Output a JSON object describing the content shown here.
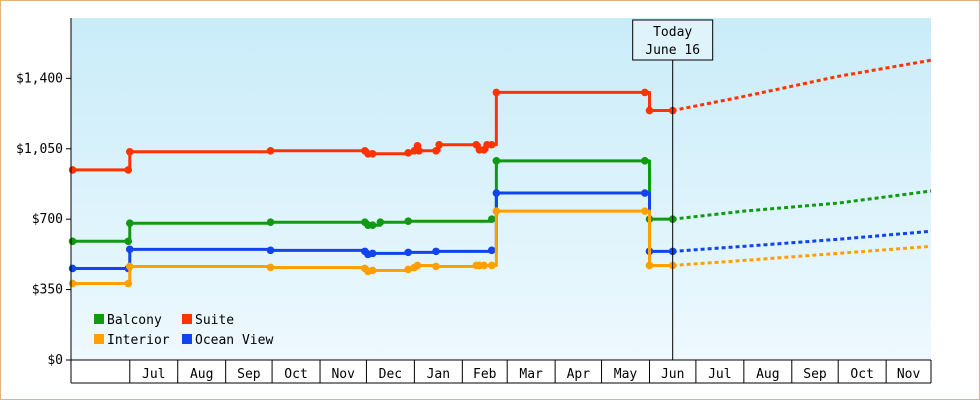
{
  "chart_data": {
    "type": "line",
    "title": "",
    "xlabel": "",
    "ylabel": "",
    "ylim": [
      0,
      1700
    ],
    "y_ticks": [
      0,
      350,
      700,
      1050,
      1400
    ],
    "y_tick_labels": [
      "$0",
      "$350",
      "$700",
      "$1,050",
      "$1,400"
    ],
    "x_domain": [
      "2023-05-24",
      "2024-11-30"
    ],
    "month_ticks": [
      {
        "date": "2023-07-01",
        "label": "Jul"
      },
      {
        "date": "2023-08-01",
        "label": "Aug"
      },
      {
        "date": "2023-09-01",
        "label": "Sep"
      },
      {
        "date": "2023-10-01",
        "label": "Oct"
      },
      {
        "date": "2023-11-01",
        "label": "Nov"
      },
      {
        "date": "2023-12-01",
        "label": "Dec"
      },
      {
        "date": "2024-01-01",
        "label": "Jan"
      },
      {
        "date": "2024-02-01",
        "label": "Feb"
      },
      {
        "date": "2024-03-01",
        "label": "Mar"
      },
      {
        "date": "2024-04-01",
        "label": "Apr"
      },
      {
        "date": "2024-05-01",
        "label": "May"
      },
      {
        "date": "2024-06-01",
        "label": "Jun"
      },
      {
        "date": "2024-07-01",
        "label": "Jul"
      },
      {
        "date": "2024-08-01",
        "label": "Aug"
      },
      {
        "date": "2024-09-01",
        "label": "Sep"
      },
      {
        "date": "2024-10-01",
        "label": "Oct"
      },
      {
        "date": "2024-11-01",
        "label": "Nov"
      }
    ],
    "today": {
      "date": "2024-06-16",
      "label_line1": "Today",
      "label_line2": "June 16"
    },
    "legend_position": "bottom-left",
    "series": [
      {
        "name": "Suite",
        "color": "#ff3300",
        "points": [
          [
            "2023-05-25",
            945
          ],
          [
            "2023-06-30",
            945
          ],
          [
            "2023-07-01",
            1035
          ],
          [
            "2023-09-30",
            1040
          ],
          [
            "2023-11-30",
            1040
          ],
          [
            "2023-12-02",
            1025
          ],
          [
            "2023-12-05",
            1025
          ],
          [
            "2023-12-28",
            1030
          ],
          [
            "2024-01-01",
            1040
          ],
          [
            "2024-01-03",
            1065
          ],
          [
            "2024-01-04",
            1040
          ],
          [
            "2024-01-15",
            1040
          ],
          [
            "2024-01-17",
            1070
          ],
          [
            "2024-02-10",
            1070
          ],
          [
            "2024-02-12",
            1045
          ],
          [
            "2024-02-15",
            1045
          ],
          [
            "2024-02-17",
            1070
          ],
          [
            "2024-02-20",
            1070
          ],
          [
            "2024-02-23",
            1330
          ],
          [
            "2024-05-29",
            1330
          ],
          [
            "2024-06-01",
            1240
          ],
          [
            "2024-06-16",
            1240
          ]
        ],
        "forecast": [
          [
            "2024-06-16",
            1240
          ],
          [
            "2024-08-01",
            1310
          ],
          [
            "2024-10-01",
            1410
          ],
          [
            "2024-11-30",
            1490
          ]
        ]
      },
      {
        "name": "Balcony",
        "color": "#119911",
        "points": [
          [
            "2023-05-25",
            590
          ],
          [
            "2023-06-30",
            590
          ],
          [
            "2023-07-01",
            680
          ],
          [
            "2023-09-30",
            685
          ],
          [
            "2023-11-30",
            685
          ],
          [
            "2023-12-02",
            670
          ],
          [
            "2023-12-05",
            670
          ],
          [
            "2023-12-10",
            685
          ],
          [
            "2023-12-28",
            690
          ],
          [
            "2024-02-20",
            700
          ],
          [
            "2024-02-23",
            990
          ],
          [
            "2024-05-29",
            990
          ],
          [
            "2024-06-01",
            700
          ],
          [
            "2024-06-16",
            700
          ]
        ],
        "forecast": [
          [
            "2024-06-16",
            700
          ],
          [
            "2024-08-01",
            740
          ],
          [
            "2024-10-01",
            780
          ],
          [
            "2024-11-30",
            840
          ]
        ]
      },
      {
        "name": "Ocean View",
        "color": "#1144ee",
        "points": [
          [
            "2023-05-25",
            455
          ],
          [
            "2023-06-30",
            455
          ],
          [
            "2023-07-01",
            550
          ],
          [
            "2023-09-30",
            545
          ],
          [
            "2023-11-30",
            540
          ],
          [
            "2023-12-02",
            525
          ],
          [
            "2023-12-05",
            530
          ],
          [
            "2023-12-28",
            535
          ],
          [
            "2024-01-15",
            540
          ],
          [
            "2024-02-20",
            545
          ],
          [
            "2024-02-23",
            830
          ],
          [
            "2024-05-29",
            830
          ],
          [
            "2024-06-01",
            540
          ],
          [
            "2024-06-16",
            540
          ]
        ],
        "forecast": [
          [
            "2024-06-16",
            540
          ],
          [
            "2024-08-01",
            565
          ],
          [
            "2024-10-01",
            600
          ],
          [
            "2024-11-30",
            640
          ]
        ]
      },
      {
        "name": "Interior",
        "color": "#ffa000",
        "points": [
          [
            "2023-05-25",
            380
          ],
          [
            "2023-06-30",
            380
          ],
          [
            "2023-07-01",
            465
          ],
          [
            "2023-09-30",
            460
          ],
          [
            "2023-11-30",
            455
          ],
          [
            "2023-12-02",
            440
          ],
          [
            "2023-12-05",
            445
          ],
          [
            "2023-12-28",
            450
          ],
          [
            "2024-01-01",
            460
          ],
          [
            "2024-01-03",
            470
          ],
          [
            "2024-01-15",
            465
          ],
          [
            "2024-02-10",
            470
          ],
          [
            "2024-02-12",
            470
          ],
          [
            "2024-02-15",
            470
          ],
          [
            "2024-02-20",
            470
          ],
          [
            "2024-02-23",
            740
          ],
          [
            "2024-05-29",
            740
          ],
          [
            "2024-06-01",
            470
          ],
          [
            "2024-06-16",
            470
          ]
        ],
        "forecast": [
          [
            "2024-06-16",
            470
          ],
          [
            "2024-08-01",
            495
          ],
          [
            "2024-10-01",
            530
          ],
          [
            "2024-11-30",
            565
          ]
        ]
      }
    ],
    "legend": [
      {
        "name": "Balcony",
        "color": "#119911"
      },
      {
        "name": "Suite",
        "color": "#ff3300"
      },
      {
        "name": "Interior",
        "color": "#ffa000"
      },
      {
        "name": "Ocean View",
        "color": "#1144ee"
      }
    ]
  }
}
